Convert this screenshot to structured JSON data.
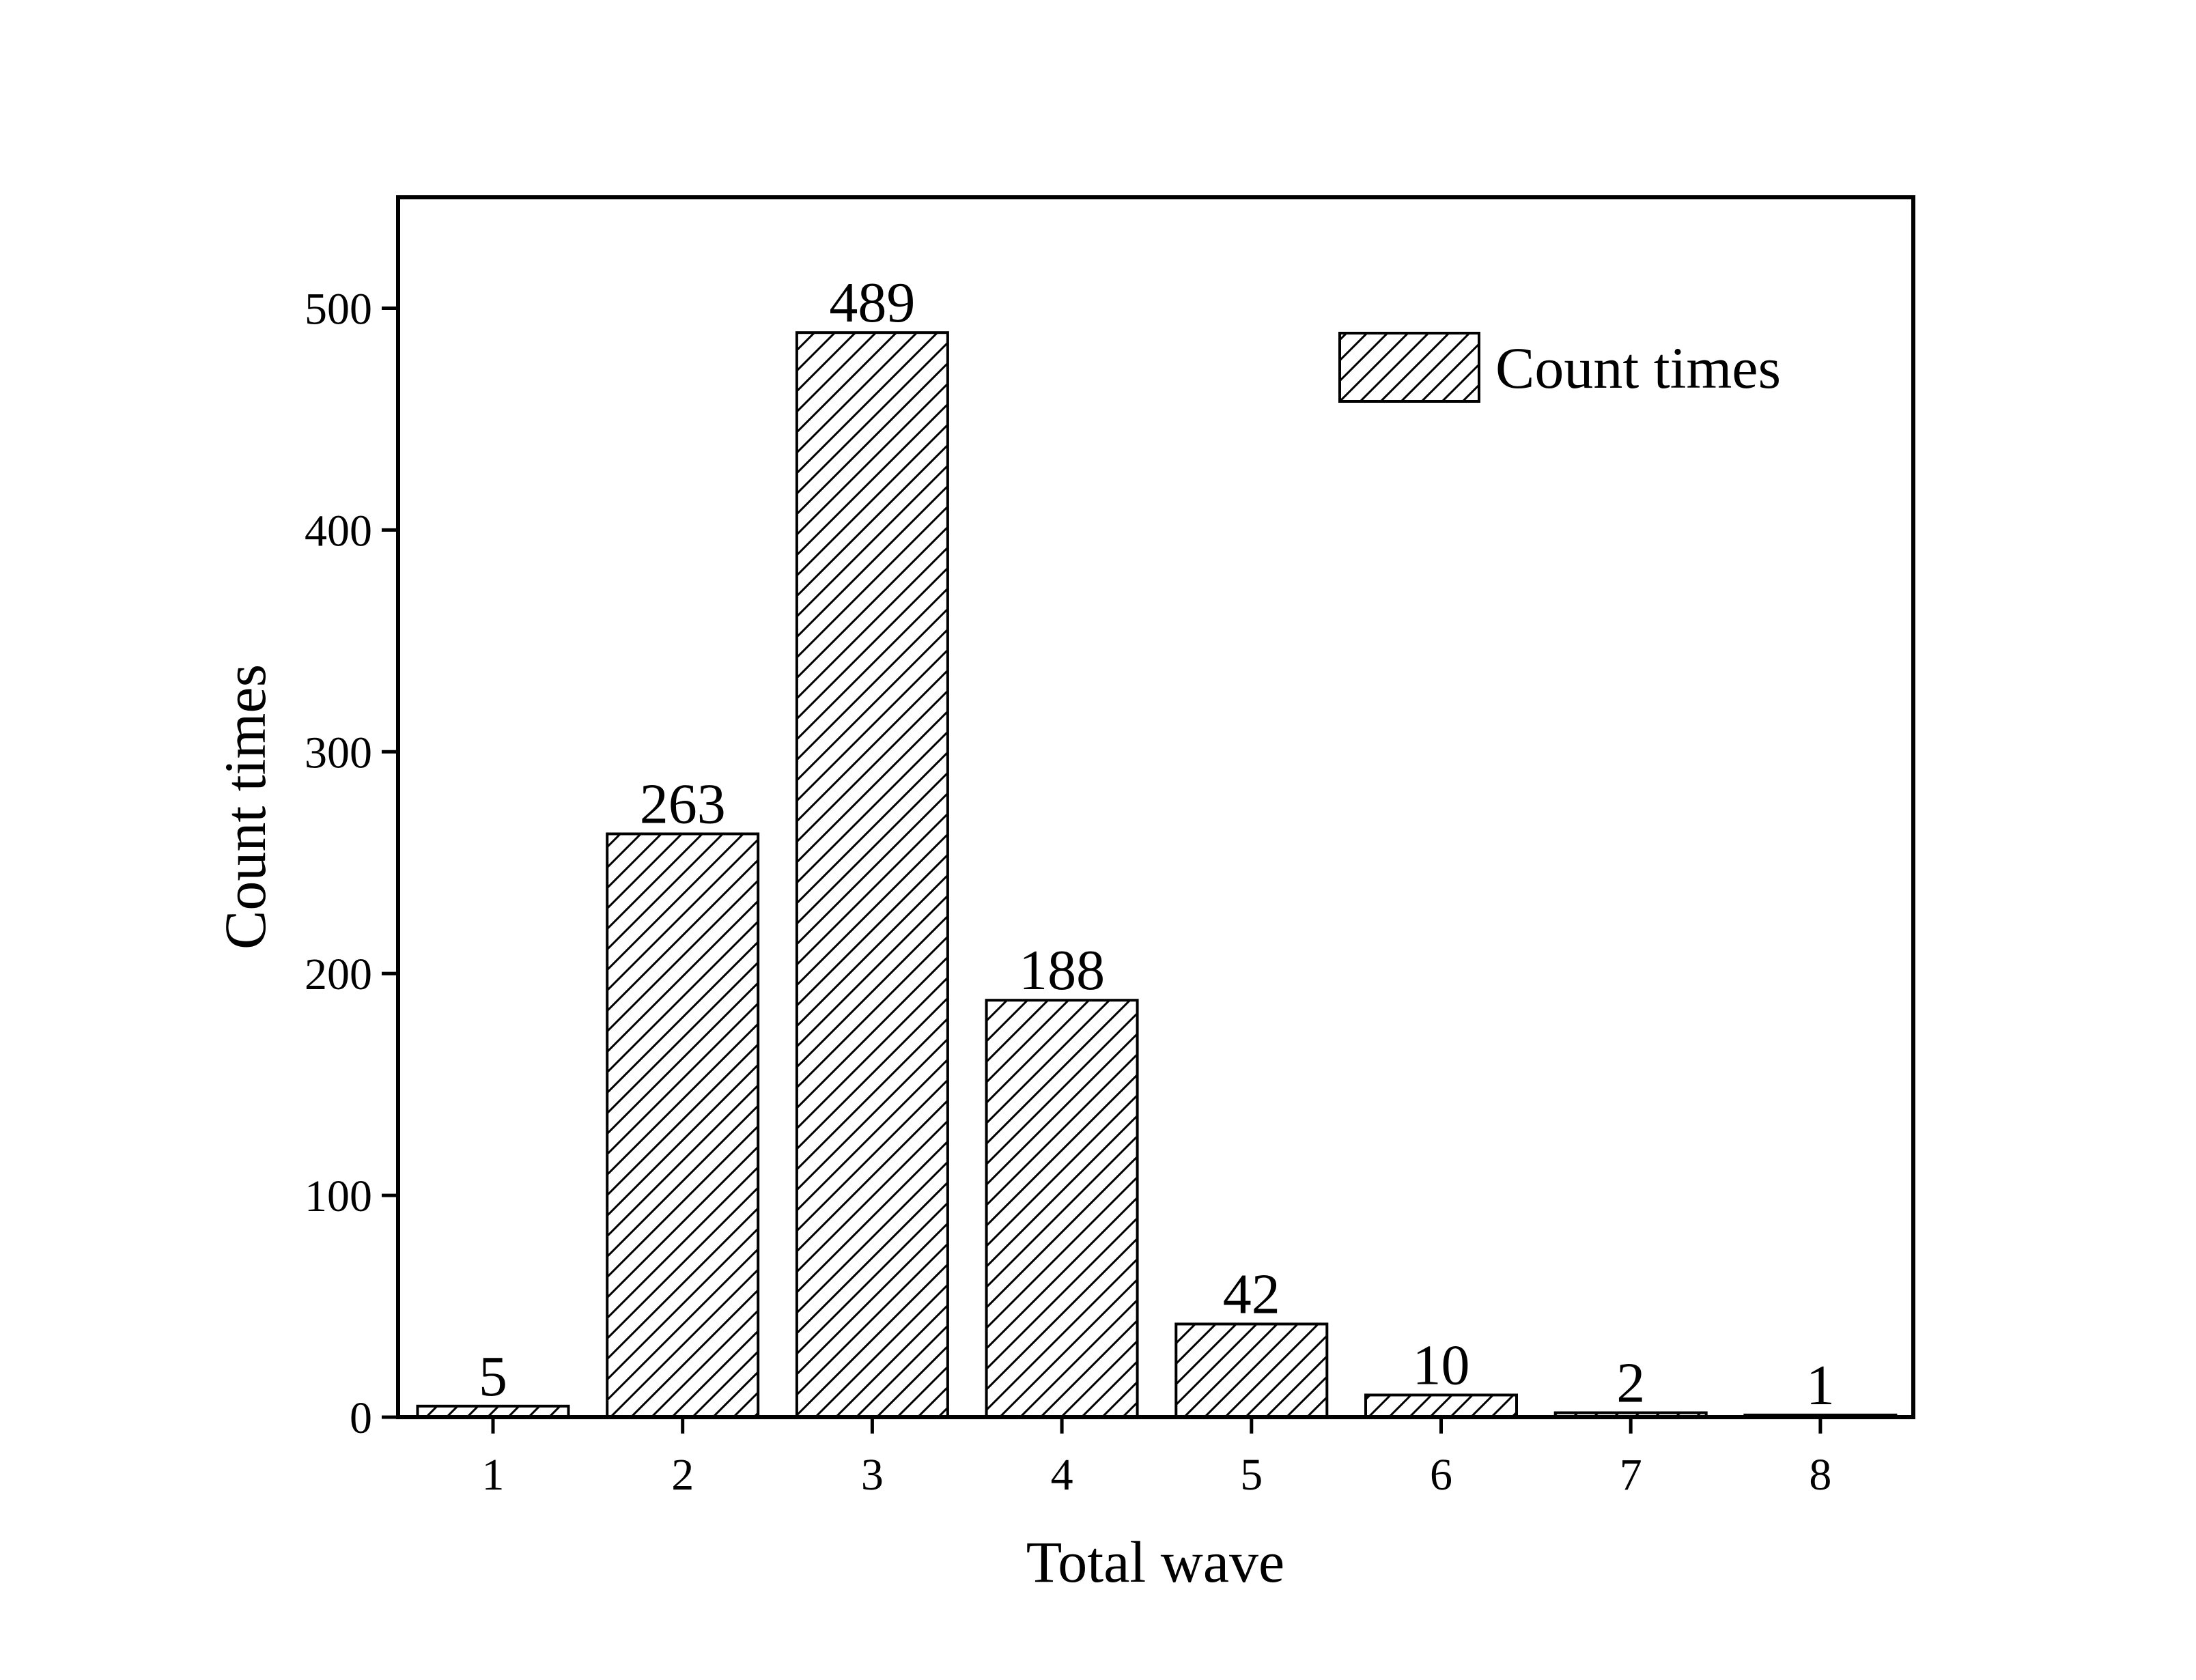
{
  "chart_data": {
    "type": "bar",
    "xlabel": "Total wave",
    "ylabel": "Count times",
    "categories": [
      "1",
      "2",
      "3",
      "4",
      "5",
      "6",
      "7",
      "8"
    ],
    "series": [
      {
        "name": "Count times",
        "values": [
          5,
          263,
          489,
          188,
          42,
          10,
          2,
          1
        ]
      }
    ],
    "data_labels": [
      "5",
      "263",
      "489",
      "188",
      "42",
      "10",
      "2",
      "1"
    ],
    "ylim": [
      0,
      550
    ],
    "yticks": [
      0,
      100,
      200,
      300,
      400,
      500
    ],
    "ytick_labels": [
      "0",
      "100",
      "200",
      "300",
      "400",
      "500"
    ],
    "bar_fill": "hatched",
    "colors": {
      "stroke": "#000000",
      "background": "#ffffff"
    },
    "legend_position": "top-right",
    "grid": false
  }
}
